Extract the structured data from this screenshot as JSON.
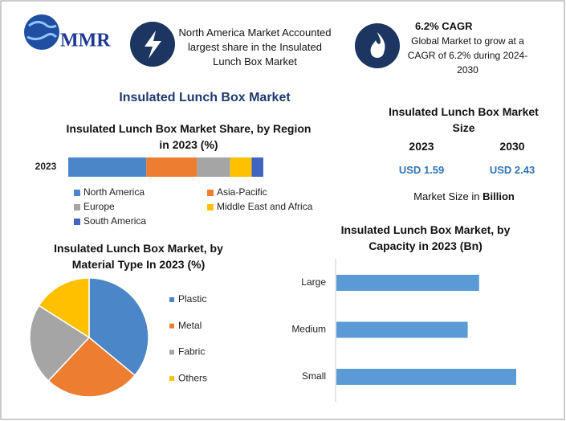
{
  "logo": "MMR",
  "highlights": [
    {
      "text": "North America Market Accounted largest share in the Insulated Lunch Box Market"
    },
    {
      "heading": "6.2% CAGR",
      "text": "Global Market to grow at a CAGR of 6.2% during 2024-2030"
    }
  ],
  "main_title": "Insulated Lunch Box Market",
  "market_size": {
    "title": "Insulated Lunch Box Market Size",
    "years": [
      "2023",
      "2030"
    ],
    "values": [
      "USD 1.59",
      "USD 2.43"
    ],
    "note_prefix": "Market Size in",
    "note_unit": "Billion"
  },
  "chart_data": [
    {
      "type": "stacked_bar",
      "title": "Insulated Lunch Box Market Share, by Region in 2023 (%)",
      "categories": [
        "2023"
      ],
      "series": [
        {
          "name": "North America",
          "color": "#4a86c8",
          "values": [
            40
          ]
        },
        {
          "name": "Asia-Pacific",
          "color": "#ed7d31",
          "values": [
            26
          ]
        },
        {
          "name": "Europe",
          "color": "#a5a5a5",
          "values": [
            17
          ]
        },
        {
          "name": "Middle East and Africa",
          "color": "#ffc000",
          "values": [
            11
          ]
        },
        {
          "name": "South America",
          "color": "#4065c0",
          "values": [
            6
          ]
        }
      ]
    },
    {
      "type": "pie",
      "title": "Insulated Lunch Box Market, by Material Type In 2023 (%)",
      "categories": [
        "Plastic",
        "Metal",
        "Fabric",
        "Others"
      ],
      "values": [
        36,
        26,
        22,
        16
      ],
      "colors": [
        "#4a86c8",
        "#ed7d31",
        "#a5a5a5",
        "#ffc000"
      ]
    },
    {
      "type": "hbar",
      "title": "Insulated Lunch Box Market, by Capacity in 2023 (Bn)",
      "categories": [
        "Large",
        "Medium",
        "Small"
      ],
      "values": [
        0.5,
        0.46,
        0.63
      ],
      "color": "#5b9bd5"
    }
  ]
}
